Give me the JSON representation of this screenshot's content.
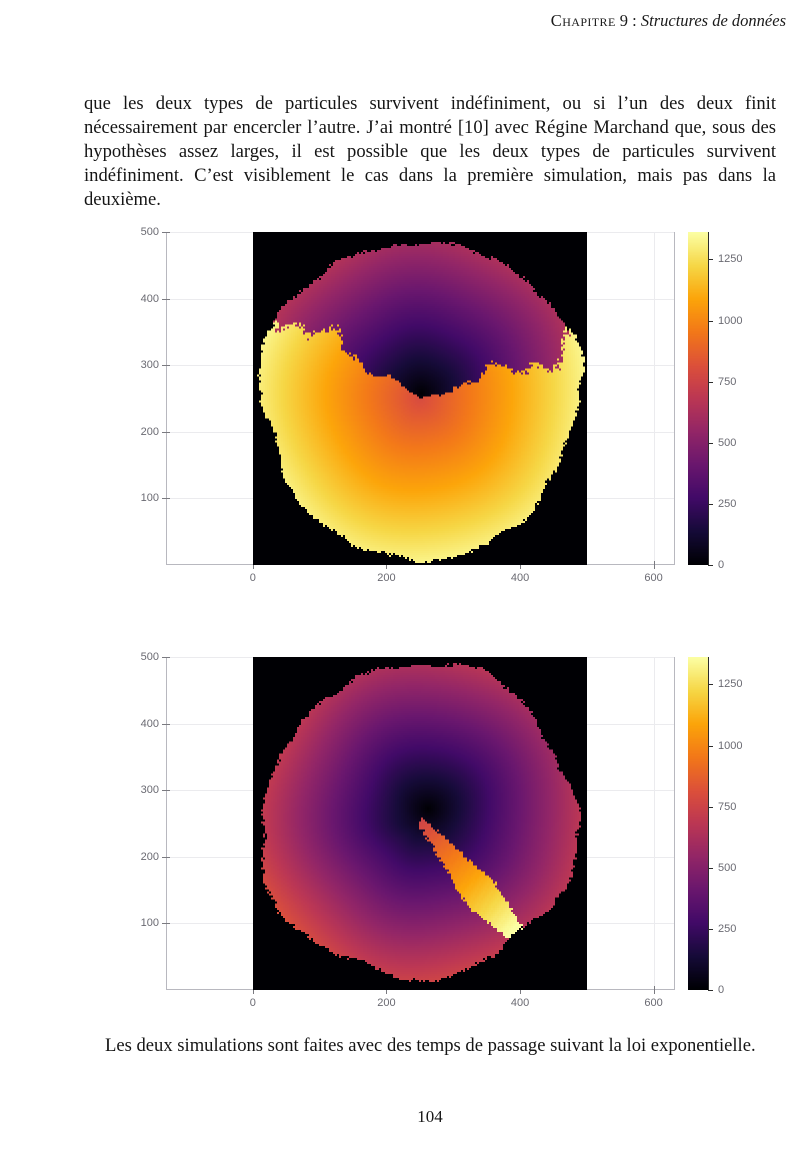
{
  "header": {
    "chapter_smallcaps": "Chapitre",
    "chapter_number": "9",
    "separator": " : ",
    "title": "Structures de données"
  },
  "body": {
    "paragraph": "que les deux types de particules survivent indéfiniment, ou si l’un des deux finit nécessairement par encercler l’autre. J’ai montré [10] avec Régine Marchand que, sous des hypothèses assez larges, il est possible que les deux types de particules survivent indéfiniment. C’est visiblement le cas dans la première simulation, mais pas dans la deuxième.",
    "caption": "Les deux simulations sont faites avec des temps de passage suivant la loi exponentielle."
  },
  "footer": {
    "page_number": "104"
  },
  "chart_data": [
    {
      "type": "heatmap",
      "title": "",
      "xlabel": "",
      "ylabel": "",
      "description": "First-passage percolation competition: two particle types grow from the centre of a 500x500 lattice; both survive, colour = passage time (inferno colormap), black = unreached.",
      "xlim": [
        -130,
        632
      ],
      "ylim": [
        0,
        500
      ],
      "x_ticks": [
        0,
        200,
        400,
        600
      ],
      "y_ticks": [
        100,
        200,
        300,
        400,
        500
      ],
      "grid": true,
      "field_domain": {
        "x": [
          0,
          500
        ],
        "y": [
          0,
          500
        ]
      },
      "background": "#000000",
      "colormap": "inferno",
      "colormap_stops": [
        "#000004",
        "#160b39",
        "#420a68",
        "#6a176e",
        "#932667",
        "#bc3754",
        "#dd513a",
        "#f37819",
        "#fca50a",
        "#f6d746",
        "#fcffa4"
      ],
      "colorbar": {
        "ticks": [
          0,
          250,
          500,
          750,
          1000,
          1250
        ],
        "vmin": 0,
        "vmax": 1362,
        "position": "right"
      },
      "sim": {
        "seed": 7,
        "center": [
          250,
          250
        ],
        "base_radius": 238,
        "species1": {
          "kind": "upper-purple",
          "seed_point": [
            252,
            258
          ],
          "rate": 2.7,
          "angle_range_deg": [
            18,
            147
          ]
        },
        "species2": {
          "kind": "lower-yellow",
          "t_near_center": 790,
          "rate": 2.15
        }
      }
    },
    {
      "type": "heatmap",
      "title": "",
      "xlabel": "",
      "ylabel": "",
      "description": "Second simulation: one type fills almost the whole disk; the other survives only in a narrow corridor towards the lower right before being encircled.",
      "xlim": [
        -130,
        632
      ],
      "ylim": [
        0,
        500
      ],
      "x_ticks": [
        0,
        200,
        400,
        600
      ],
      "y_ticks": [
        100,
        200,
        300,
        400,
        500
      ],
      "grid": true,
      "field_domain": {
        "x": [
          0,
          500
        ],
        "y": [
          0,
          500
        ]
      },
      "background": "#000000",
      "colormap": "inferno",
      "colormap_stops": [
        "#000004",
        "#160b39",
        "#420a68",
        "#6a176e",
        "#932667",
        "#bc3754",
        "#dd513a",
        "#f37819",
        "#fca50a",
        "#f6d746",
        "#fcffa4"
      ],
      "colorbar": {
        "ticks": [
          0,
          250,
          500,
          750,
          1000,
          1250
        ],
        "vmin": 0,
        "vmax": 1362,
        "position": "right"
      },
      "sim": {
        "seed": 13,
        "center": [
          250,
          250
        ],
        "base_radius": 237,
        "species1": {
          "kind": "main-purple",
          "seed_point": [
            262,
            272
          ],
          "rate": 2.9
        },
        "species2": {
          "kind": "trapped-yellow",
          "path": [
            [
              254,
              252
            ],
            [
              318,
              168
            ],
            [
              388,
              92
            ]
          ],
          "half_widths": [
            [
              0,
              6
            ],
            [
              0.35,
              16
            ],
            [
              0.65,
              27
            ],
            [
              1,
              15
            ]
          ],
          "t_start": 760,
          "t_end": 1360
        },
        "edge_dip": {
          "angle_deg": -49,
          "width_deg": 13,
          "depth": 22
        }
      }
    }
  ]
}
